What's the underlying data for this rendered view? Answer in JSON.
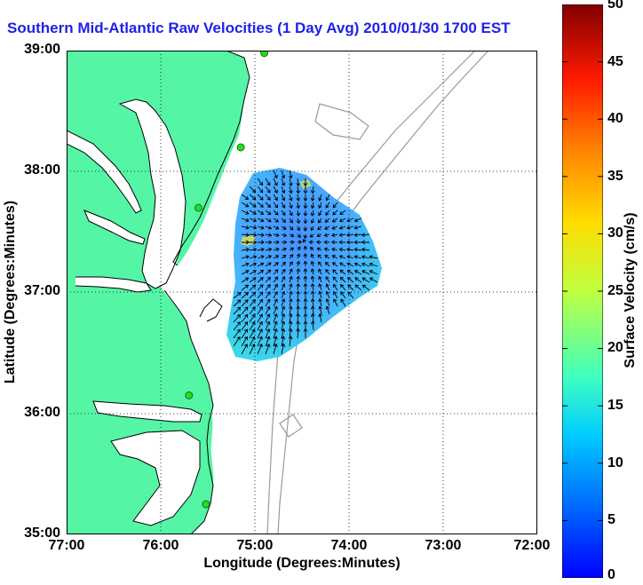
{
  "title": "Southern Mid-Atlantic Raw Velocities (1 Day Avg) 2010/01/30 1700 EST",
  "axes": {
    "xlabel": "Longitude (Degrees:Minutes)",
    "ylabel": "Latitude (Degrees:Minutes)",
    "x_ticks": [
      "77:00",
      "76:00",
      "75:00",
      "74:00",
      "73:00",
      "72:00"
    ],
    "y_ticks": [
      "39:00",
      "38:00",
      "37:00",
      "36:00",
      "35:00"
    ],
    "xlim": [
      -77,
      -72
    ],
    "ylim": [
      35,
      39
    ],
    "grid": "dotted"
  },
  "colorbar": {
    "label": "Surface Velocity (cm/s)",
    "ticks": [
      "50",
      "45",
      "40",
      "35",
      "30",
      "25",
      "20",
      "15",
      "10",
      "5",
      "0"
    ],
    "range": [
      0,
      50
    ],
    "colormap": "jet"
  },
  "colors": {
    "land": "#55f5a6",
    "water": "#ffffff",
    "bathymetry": "#9a9a9a",
    "title": "#1f22e6",
    "station": "#22dd22"
  },
  "stations": [
    {
      "lon": -74.9,
      "lat": 38.98
    },
    {
      "lon": -75.15,
      "lat": 38.2
    },
    {
      "lon": -75.6,
      "lat": 37.7
    },
    {
      "lon": -75.7,
      "lat": 36.15
    },
    {
      "lon": -75.52,
      "lat": 35.25
    }
  ]
}
